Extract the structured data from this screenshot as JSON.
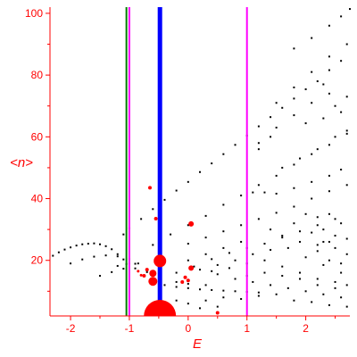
{
  "chart_data": {
    "type": "scatter",
    "title": "",
    "xlabel": "E",
    "ylabel": "<n>",
    "xlim": [
      -2.35,
      2.75
    ],
    "ylim": [
      2,
      102
    ],
    "xticks": [
      -2,
      -1,
      0,
      1,
      2
    ],
    "yticks": [
      20,
      40,
      60,
      80,
      100
    ],
    "grid": false,
    "legend": "none",
    "colors": {
      "axes": "#ff0000",
      "points": "#000000",
      "highlight_points": "#ff0000",
      "green_line": "#008000",
      "magenta_line": "#ff00ff",
      "blue_line": "#0000ff"
    },
    "vertical_lines": [
      {
        "x": -1.05,
        "color": "green",
        "style": "thin"
      },
      {
        "x": -1.0,
        "color": "magenta",
        "style": "thin"
      },
      {
        "x": 1.0,
        "color": "magenta",
        "style": "thin"
      },
      {
        "x": -0.48,
        "color": "blue",
        "style": "thick"
      }
    ],
    "series": [
      {
        "values": [
          [
            -2.3,
            21.5
          ],
          [
            -2.2,
            22.6
          ],
          [
            -2.1,
            23.5
          ],
          [
            -2.0,
            24.2
          ],
          [
            -1.9,
            24.8
          ],
          [
            -1.8,
            25.2
          ],
          [
            -1.7,
            25.4
          ],
          [
            -1.6,
            25.5
          ],
          [
            -1.5,
            25.2
          ],
          [
            -1.4,
            24.6
          ],
          [
            -1.3,
            23.6
          ],
          [
            -1.2,
            22.0
          ],
          [
            -1.1,
            20.3
          ],
          [
            -1.0,
            19.0
          ],
          [
            -2.0,
            19.0
          ],
          [
            -1.8,
            20.3
          ],
          [
            -1.6,
            21.2
          ],
          [
            -1.4,
            21.6
          ],
          [
            -1.2,
            21.3
          ],
          [
            -1.0,
            20.4
          ],
          [
            -0.85,
            19.0
          ],
          [
            -1.5,
            15.0
          ],
          [
            -1.3,
            16.2
          ],
          [
            -1.1,
            17.3
          ],
          [
            -0.9,
            17.4
          ],
          [
            -0.7,
            16.2
          ],
          [
            -1.2,
            18.2
          ],
          [
            -1.05,
            18.8
          ],
          [
            -0.9,
            18.9
          ],
          [
            -0.4,
            12.0
          ],
          [
            -0.2,
            11.4
          ],
          [
            0.0,
            11.0
          ],
          [
            0.2,
            10.6
          ],
          [
            0.4,
            10.4
          ],
          [
            0.6,
            10.2
          ],
          [
            0.8,
            10.0
          ],
          [
            1.0,
            9.8
          ],
          [
            1.2,
            9.6
          ],
          [
            -0.2,
            13.0
          ],
          [
            0.0,
            12.4
          ],
          [
            0.3,
            12.0
          ],
          [
            -1.1,
            28.4
          ],
          [
            -1.0,
            30.4
          ],
          [
            -0.8,
            33.4
          ],
          [
            -0.6,
            36.6
          ],
          [
            -0.4,
            39.6
          ],
          [
            -0.2,
            42.6
          ],
          [
            0.0,
            45.4
          ],
          [
            0.2,
            48.6
          ],
          [
            0.4,
            51.4
          ],
          [
            0.6,
            54.4
          ],
          [
            0.8,
            57.4
          ],
          [
            1.0,
            60.4
          ],
          [
            1.2,
            63.4
          ],
          [
            1.4,
            66.4
          ],
          [
            1.6,
            69.4
          ],
          [
            1.8,
            72.4
          ],
          [
            2.0,
            75.4
          ],
          [
            2.2,
            78.0
          ],
          [
            2.4,
            81.6
          ],
          [
            2.6,
            84.6
          ],
          [
            -0.6,
            25.0
          ],
          [
            -0.3,
            28.4
          ],
          [
            0.0,
            31.4
          ],
          [
            0.3,
            34.4
          ],
          [
            0.6,
            38.0
          ],
          [
            0.9,
            41.0
          ],
          [
            1.2,
            44.4
          ],
          [
            1.5,
            47.4
          ],
          [
            1.8,
            51.0
          ],
          [
            2.1,
            54.4
          ],
          [
            2.4,
            57.4
          ],
          [
            2.7,
            61.0
          ],
          [
            0.0,
            25.4
          ],
          [
            0.3,
            27.4
          ],
          [
            0.6,
            29.4
          ],
          [
            0.9,
            31.4
          ],
          [
            1.2,
            33.4
          ],
          [
            1.5,
            35.4
          ],
          [
            1.8,
            37.4
          ],
          [
            2.1,
            40.0
          ],
          [
            2.4,
            42.4
          ],
          [
            2.7,
            44.4
          ],
          [
            0.4,
            20.4
          ],
          [
            0.7,
            22.4
          ],
          [
            1.0,
            24.0
          ],
          [
            1.3,
            25.4
          ],
          [
            1.6,
            27.4
          ],
          [
            1.9,
            29.4
          ],
          [
            2.2,
            31.4
          ],
          [
            2.5,
            33.4
          ],
          [
            1.5,
            71.0
          ],
          [
            1.8,
            76.0
          ],
          [
            2.1,
            81.0
          ],
          [
            2.4,
            86.0
          ],
          [
            2.7,
            90.0
          ],
          [
            1.8,
            88.6
          ],
          [
            2.1,
            92.0
          ],
          [
            2.4,
            96.0
          ],
          [
            2.6,
            99.0
          ],
          [
            2.75,
            101.4
          ],
          [
            1.2,
            58.0
          ],
          [
            1.5,
            63.0
          ],
          [
            1.8,
            67.0
          ],
          [
            2.1,
            71.0
          ],
          [
            2.4,
            74.0
          ],
          [
            1.1,
            42.0
          ],
          [
            1.3,
            42.0
          ],
          [
            1.5,
            41.6
          ],
          [
            1.8,
            43.4
          ],
          [
            2.1,
            45.4
          ],
          [
            2.4,
            47.4
          ],
          [
            2.6,
            49.4
          ],
          [
            1.6,
            50.0
          ],
          [
            1.9,
            53.0
          ],
          [
            2.2,
            56.0
          ],
          [
            2.5,
            60.0
          ],
          [
            2.7,
            62.0
          ],
          [
            2.0,
            64.4
          ],
          [
            2.3,
            66.0
          ],
          [
            2.6,
            68.0
          ],
          [
            1.2,
            56.0
          ],
          [
            1.4,
            60.0
          ],
          [
            2.5,
            70.0
          ],
          [
            2.7,
            73.0
          ],
          [
            2.3,
            77.0
          ],
          [
            2.0,
            35.0
          ],
          [
            2.2,
            34.0
          ],
          [
            2.4,
            35.0
          ],
          [
            2.6,
            32.0
          ],
          [
            2.3,
            30.0
          ],
          [
            2.5,
            28.0
          ],
          [
            2.7,
            27.0
          ],
          [
            1.8,
            32.0
          ],
          [
            2.1,
            29.0
          ],
          [
            2.3,
            26.0
          ],
          [
            2.5,
            24.0
          ],
          [
            2.7,
            22.0
          ],
          [
            2.2,
            23.0
          ],
          [
            2.4,
            20.0
          ],
          [
            2.6,
            19.0
          ],
          [
            1.4,
            30.0
          ],
          [
            1.6,
            28.0
          ],
          [
            1.9,
            26.0
          ],
          [
            2.2,
            25.0
          ],
          [
            2.4,
            26.0
          ],
          [
            0.5,
            18.5
          ],
          [
            0.8,
            20.0
          ],
          [
            1.1,
            22.0
          ],
          [
            1.4,
            23.4
          ],
          [
            1.7,
            24.0
          ],
          [
            2.0,
            21.0
          ],
          [
            2.3,
            18.5
          ],
          [
            2.6,
            16.0
          ],
          [
            0.2,
            17.0
          ],
          [
            0.5,
            15.5
          ],
          [
            0.8,
            14.0
          ],
          [
            1.1,
            13.0
          ],
          [
            1.4,
            12.0
          ],
          [
            1.7,
            11.0
          ],
          [
            2.0,
            10.0
          ],
          [
            2.3,
            9.0
          ],
          [
            2.6,
            8.0
          ],
          [
            0.0,
            20.0
          ],
          [
            0.3,
            22.0
          ],
          [
            0.6,
            24.0
          ],
          [
            0.9,
            26.0
          ],
          [
            -0.2,
            16.0
          ],
          [
            0.1,
            18.0
          ],
          [
            0.4,
            16.5
          ],
          [
            0.7,
            17.5
          ],
          [
            1.0,
            19.0
          ],
          [
            1.3,
            20.0
          ],
          [
            1.6,
            18.0
          ],
          [
            1.9,
            16.0
          ],
          [
            2.2,
            14.0
          ],
          [
            2.5,
            13.0
          ],
          [
            2.7,
            12.0
          ],
          [
            0.3,
            7.0
          ],
          [
            0.6,
            8.0
          ],
          [
            0.9,
            7.5
          ],
          [
            1.2,
            8.5
          ],
          [
            1.5,
            9.0
          ],
          [
            1.8,
            7.0
          ],
          [
            2.1,
            6.5
          ],
          [
            2.4,
            5.5
          ],
          [
            2.7,
            5.0
          ],
          [
            0.0,
            6.0
          ],
          [
            -0.2,
            7.0
          ],
          [
            0.2,
            4.5
          ],
          [
            0.5,
            5.0
          ],
          [
            1.0,
            15.0
          ],
          [
            1.3,
            16.0
          ],
          [
            1.6,
            15.0
          ],
          [
            1.9,
            14.0
          ],
          [
            2.2,
            12.0
          ],
          [
            2.5,
            11.0
          ]
        ]
      },
      {
        "values": [
          [
            -0.48,
            3.0
          ],
          [
            -0.48,
            19.8
          ],
          [
            -0.6,
            13.2
          ],
          [
            -0.6,
            15.8
          ],
          [
            0.05,
            17.5
          ],
          [
            0.05,
            31.8
          ],
          [
            -0.7,
            17.0
          ],
          [
            -0.75,
            15.0
          ],
          [
            -0.55,
            33.5
          ],
          [
            -0.65,
            43.5
          ],
          [
            -0.05,
            14.5
          ],
          [
            -0.1,
            13.0
          ],
          [
            0.0,
            13.5
          ],
          [
            0.5,
            3.0
          ],
          [
            -0.85,
            16.5
          ],
          [
            -0.8,
            15.2
          ]
        ],
        "sizes": [
          18,
          7,
          5,
          4,
          3,
          3,
          2,
          2,
          2,
          2,
          2,
          2,
          2,
          2,
          1.5,
          1.5
        ]
      }
    ]
  }
}
